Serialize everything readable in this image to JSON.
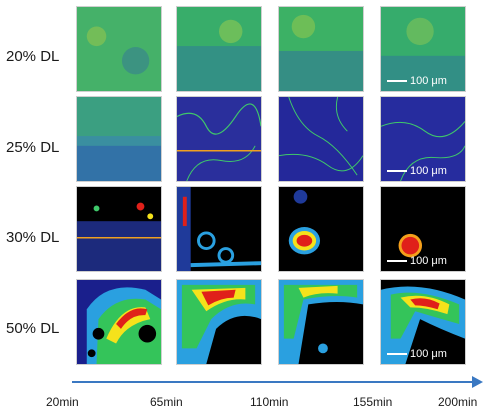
{
  "rows": [
    "20% DL",
    "25% DL",
    "30% DL",
    "50% DL"
  ],
  "scale_bar": "100 μm",
  "times": [
    "20min",
    "65min",
    "110min",
    "155min",
    "200min"
  ],
  "colors": {
    "timeline_arrow": "#3a78c2",
    "high_signal": "#e0201a",
    "mid_signal": "#f5e21b",
    "low_signal": "#34c45a",
    "background_signal": "#1a1f8c",
    "void": "#000000"
  }
}
